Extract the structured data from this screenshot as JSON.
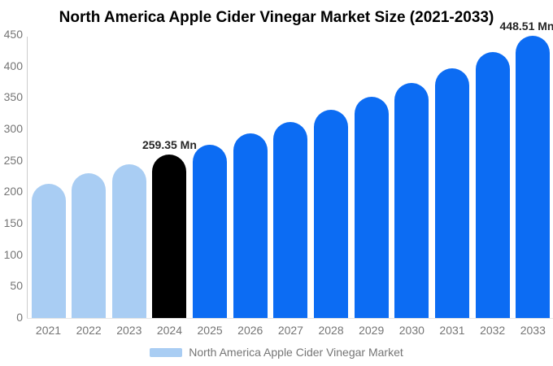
{
  "title": "North America Apple Cider Vinegar Market Size (2021-2033)",
  "legend": {
    "label": "North America Apple Cider Vinegar Market",
    "swatch_color": "#a9cdf3"
  },
  "colors": {
    "historical": "#a9cdf3",
    "highlight": "#000000",
    "forecast": "#0c6cf3",
    "axis_line": "#cccccc",
    "baseline": "#e6e6e6",
    "tick_text": "#757575",
    "annotation_text": "#262626",
    "title_text": "#000000",
    "background": "#ffffff"
  },
  "chart_data": {
    "type": "bar",
    "title": "North America Apple Cider Vinegar Market Size (2021-2033)",
    "unit": "Mn",
    "categories": [
      "2021",
      "2022",
      "2023",
      "2024",
      "2025",
      "2026",
      "2027",
      "2028",
      "2029",
      "2030",
      "2031",
      "2032",
      "2033"
    ],
    "values": [
      213,
      230,
      245,
      259.35,
      275.6,
      293,
      311.4,
      330.9,
      351.7,
      373.8,
      397.2,
      422.2,
      448.51
    ],
    "bar_styles": [
      "historical",
      "historical",
      "historical",
      "highlight",
      "forecast",
      "forecast",
      "forecast",
      "forecast",
      "forecast",
      "forecast",
      "forecast",
      "forecast",
      "forecast"
    ],
    "point_labels": {
      "2024": "259.35 Mn",
      "2033": "448.51 Mn"
    },
    "ylim": [
      0,
      450
    ],
    "yticks": [
      0,
      50,
      100,
      150,
      200,
      250,
      300,
      350,
      400,
      450
    ],
    "xlabel": "",
    "ylabel": "",
    "grid": false,
    "legend_position": "bottom",
    "legend_entries": [
      "North America Apple Cider Vinegar Market"
    ]
  }
}
